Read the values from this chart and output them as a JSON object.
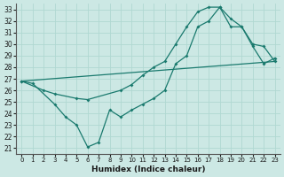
{
  "xlabel": "Humidex (Indice chaleur)",
  "bg_color": "#cce8e4",
  "grid_color": "#b0d8d2",
  "line_color": "#1a7a6e",
  "xlim": [
    -0.5,
    23.5
  ],
  "ylim": [
    20.5,
    33.5
  ],
  "xticks": [
    0,
    1,
    2,
    3,
    4,
    5,
    6,
    7,
    8,
    9,
    10,
    11,
    12,
    13,
    14,
    15,
    16,
    17,
    18,
    19,
    20,
    21,
    22,
    23
  ],
  "yticks": [
    21,
    22,
    23,
    24,
    25,
    26,
    27,
    28,
    29,
    30,
    31,
    32,
    33
  ],
  "series1_x": [
    0,
    2,
    3,
    5,
    6,
    9,
    10,
    11,
    12,
    13,
    14,
    15,
    16,
    17,
    18,
    19,
    20,
    21,
    22,
    23
  ],
  "series1_y": [
    26.8,
    26.0,
    25.7,
    25.3,
    25.2,
    26.0,
    26.5,
    27.3,
    28.0,
    28.5,
    30.0,
    31.5,
    32.8,
    33.2,
    33.2,
    32.2,
    31.5,
    30.0,
    29.8,
    28.5
  ],
  "series2_x": [
    0,
    1,
    3,
    4,
    5,
    6,
    7,
    8,
    9,
    10,
    11,
    12,
    13,
    14,
    15,
    16,
    17,
    18,
    19,
    20,
    21,
    22,
    23
  ],
  "series2_y": [
    26.8,
    26.6,
    24.8,
    23.7,
    23.0,
    21.1,
    21.5,
    24.3,
    23.7,
    24.3,
    24.8,
    25.3,
    26.0,
    28.3,
    29.0,
    31.5,
    32.0,
    33.2,
    31.5,
    31.5,
    29.8,
    28.3,
    28.8
  ],
  "series3_x": [
    0,
    23
  ],
  "series3_y": [
    26.8,
    28.5
  ]
}
